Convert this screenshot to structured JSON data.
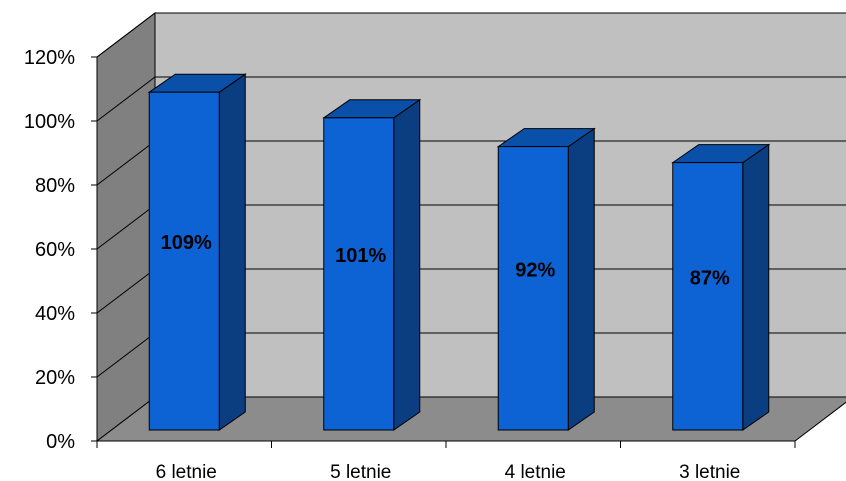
{
  "chart_data": {
    "type": "bar",
    "title": "",
    "xlabel": "",
    "ylabel": "",
    "categories": [
      "6 letnie",
      "5 letnie",
      "4 letnie",
      "3 letnie"
    ],
    "values": [
      109,
      101,
      92,
      87
    ],
    "data_labels": [
      "109%",
      "101%",
      "92%",
      "87%"
    ],
    "y_ticks": [
      "0%",
      "20%",
      "40%",
      "60%",
      "80%",
      "100%",
      "120%"
    ],
    "ylim": [
      0,
      120
    ],
    "grid": true,
    "legend": "none",
    "style": "3d-column",
    "colors": {
      "bar_front": "#0d63d4",
      "bar_side": "#0a3e80",
      "bar_top": "#0a4fa8",
      "back_wall": "#c0c0c0",
      "side_wall": "#808080",
      "floor": "#8c8c8c"
    }
  }
}
